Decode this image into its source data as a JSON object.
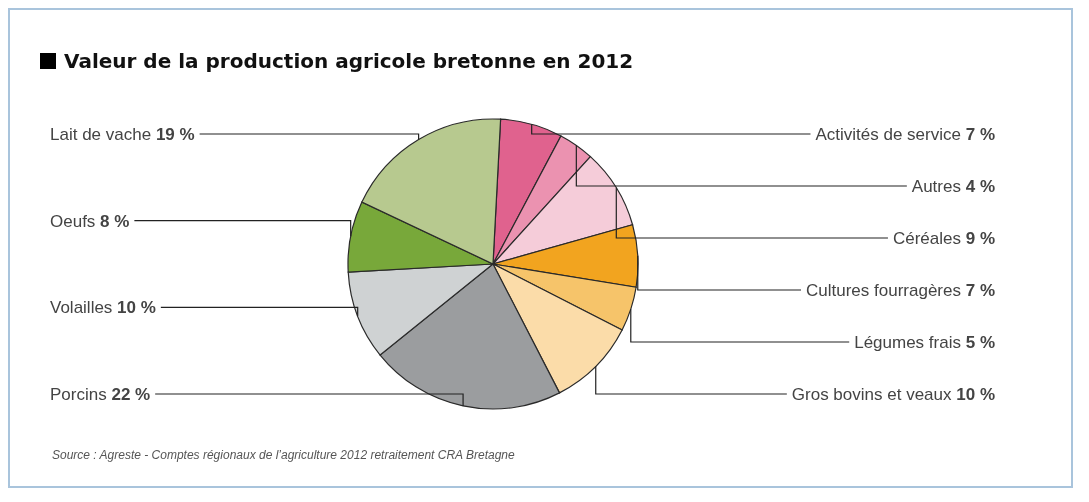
{
  "chart_data": {
    "type": "pie",
    "title": "Valeur de la production agricole bretonne en 2012",
    "categories": [
      "Activités de service",
      "Autres",
      "Céréales",
      "Cultures fourragères",
      "Légumes frais",
      "Gros bovins et veaux",
      "Porcins",
      "Volailles",
      "Oeufs",
      "Lait de vache"
    ],
    "values": [
      7,
      4,
      9,
      7,
      5,
      10,
      22,
      10,
      8,
      19
    ],
    "value_labels": [
      "7 %",
      "4 %",
      "9 %",
      "7 %",
      "5 %",
      "10 %",
      "22 %",
      "10 %",
      "8 %",
      "19 %"
    ],
    "colors": [
      "#e0628e",
      "#eb92b0",
      "#f5ccd9",
      "#f2a41f",
      "#f6c46a",
      "#fbdca9",
      "#9b9d9f",
      "#cfd2d3",
      "#78a83a",
      "#b7c98f"
    ],
    "annotations": [
      "Source : Agreste - Comptes régionaux de l’agriculture 2012 retraitement CRA Bretagne"
    ]
  }
}
